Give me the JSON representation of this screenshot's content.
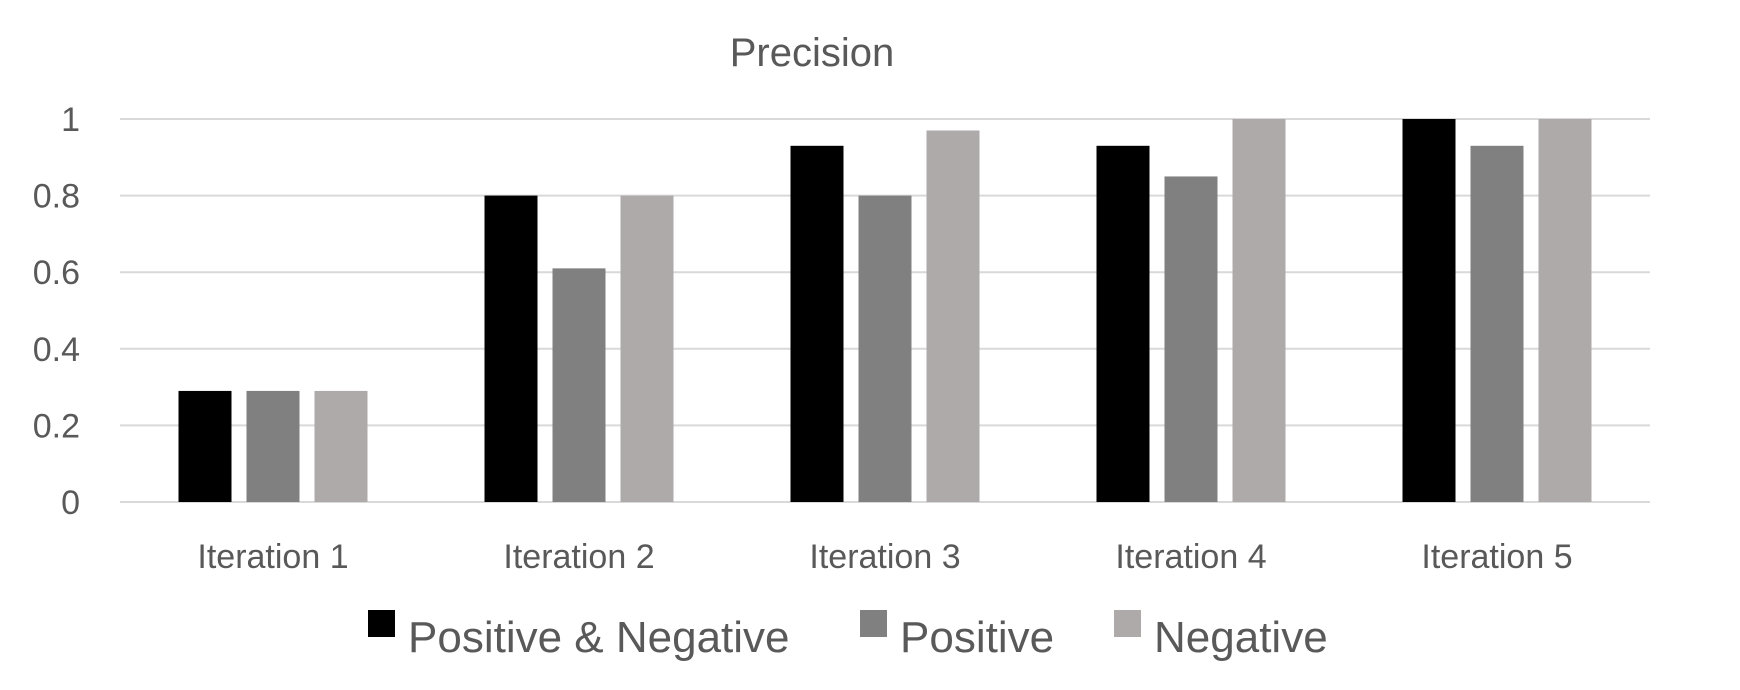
{
  "chart_data": {
    "type": "bar",
    "title": "Precision",
    "xlabel": "",
    "ylabel": "",
    "categories": [
      "Iteration 1",
      "Iteration 2",
      "Iteration 3",
      "Iteration 4",
      "Iteration 5"
    ],
    "series": [
      {
        "name": "Positive & Negative",
        "color": "#000000",
        "values": [
          0.29,
          0.8,
          0.93,
          0.93,
          1.0
        ]
      },
      {
        "name": "Positive",
        "color": "#808080",
        "values": [
          0.29,
          0.61,
          0.8,
          0.85,
          0.93
        ]
      },
      {
        "name": "Negative",
        "color": "#aeaaaa",
        "values": [
          0.29,
          0.8,
          0.97,
          1.0,
          1.0
        ]
      }
    ],
    "yticks": [
      "0",
      "0.2",
      "0.4",
      "0.6",
      "0.8",
      "1"
    ],
    "ylim": [
      0,
      1
    ],
    "grid": true,
    "legend_position": "bottom"
  }
}
